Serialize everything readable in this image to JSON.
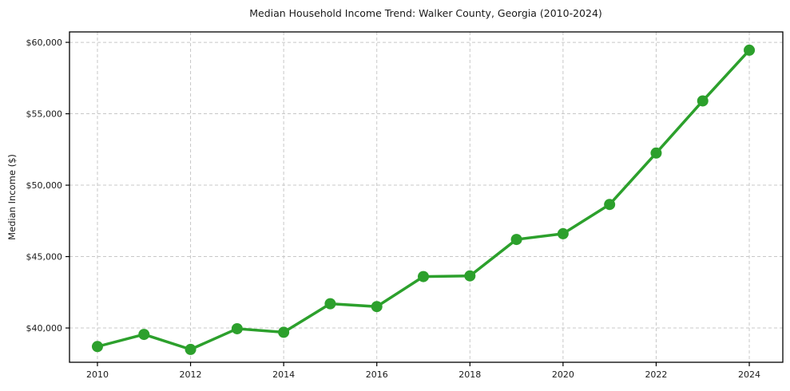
{
  "figure": {
    "background": "#ffffff"
  },
  "chart_data": {
    "type": "line",
    "title": "Median Household Income Trend: Walker County, Georgia (2010-2024)",
    "xlabel": "",
    "ylabel": "Median Income ($)",
    "series_name": "Median Household Income",
    "x": [
      2010,
      2011,
      2012,
      2013,
      2014,
      2015,
      2016,
      2017,
      2018,
      2019,
      2020,
      2021,
      2022,
      2023,
      2024
    ],
    "values": [
      38700,
      39550,
      38500,
      39950,
      39700,
      41700,
      41500,
      43600,
      43650,
      46200,
      46600,
      48650,
      52250,
      55900,
      59450
    ],
    "line_color": "#2ca02c",
    "marker": "circle",
    "marker_radius": 7,
    "line_width": 3.5,
    "x_ticks": [
      2010,
      2012,
      2014,
      2016,
      2018,
      2020,
      2022,
      2024
    ],
    "x_tick_labels": [
      "2010",
      "2012",
      "2014",
      "2016",
      "2018",
      "2020",
      "2022",
      "2024"
    ],
    "y_ticks": [
      40000,
      45000,
      50000,
      55000,
      60000
    ],
    "y_tick_labels": [
      "$40,000",
      "$45,000",
      "$50,000",
      "$55,000",
      "$60,000"
    ],
    "xlim": [
      2009.4,
      2024.72
    ],
    "ylim": [
      37600,
      60730
    ],
    "grid": true,
    "grid_color": "#c8c8c8",
    "grid_dash": "4 3",
    "spine_color": "#000000",
    "legend_position": "none"
  }
}
